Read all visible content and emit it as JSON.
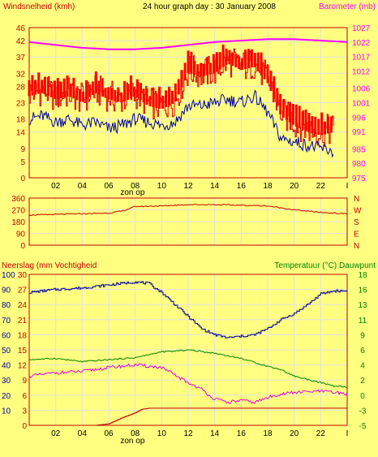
{
  "header": {
    "left_title": "Windsnelheid (kmh)",
    "center_title": "24 hour graph day : 30 January 2008",
    "right_title": "Barometer (mb)"
  },
  "colors": {
    "background": "#ffff80",
    "frame": "#c00000",
    "wind": "#d00000",
    "gust": "#ff0000",
    "avg_wind": "#0000a0",
    "barometer": "#ff00ff",
    "direction": "#c00000",
    "humidity": "#0000a0",
    "temperature": "#008000",
    "dewpoint": "#e000e0",
    "rain": "#c00000",
    "grid": "#e0e0e0"
  },
  "chart_data": [
    {
      "type": "line",
      "title": "24 hour graph day : 30 January 2008",
      "ylabel": "Windsnelheid (kmh)",
      "y2label": "Barometer (mb)",
      "x_ticks": [
        "02",
        "04",
        "06",
        "08",
        "10",
        "12",
        "14",
        "16",
        "18",
        "20",
        "22",
        "I"
      ],
      "sunrise_label": "zon op",
      "ylim": [
        0,
        46
      ],
      "y_ticks": [
        0,
        5,
        9,
        14,
        18,
        23,
        28,
        32,
        37,
        42,
        46
      ],
      "y2lim": [
        975,
        1027
      ],
      "y2_ticks": [
        975,
        980,
        985,
        991,
        996,
        1001,
        1006,
        1012,
        1017,
        1022,
        1027
      ],
      "grid": true,
      "series": [
        {
          "role": "wind",
          "axis": "left",
          "color": "#e00000",
          "x": [
            0,
            1,
            2,
            3,
            4,
            5,
            6,
            7,
            8,
            9,
            10,
            11,
            12,
            13,
            14,
            15,
            16,
            17,
            18,
            19,
            20,
            21,
            22,
            23
          ],
          "values": [
            26,
            27,
            25,
            26,
            24,
            27,
            25,
            24,
            26,
            23,
            22,
            24,
            33,
            32,
            33,
            36,
            34,
            35,
            30,
            20,
            17,
            15,
            14,
            15
          ]
        },
        {
          "role": "avg_wind",
          "axis": "left",
          "color": "#0000a0",
          "x": [
            0,
            1,
            2,
            3,
            4,
            5,
            6,
            7,
            8,
            9,
            10,
            11,
            12,
            13,
            14,
            15,
            16,
            17,
            18,
            19,
            20,
            21,
            22,
            23
          ],
          "values": [
            18,
            19,
            17,
            18,
            16,
            17,
            15,
            16,
            18,
            17,
            16,
            17,
            22,
            22,
            23,
            24,
            23,
            25,
            20,
            12,
            11,
            10,
            9,
            8
          ]
        },
        {
          "role": "barometer",
          "axis": "right",
          "color": "#ff00ff",
          "x": [
            0,
            2,
            4,
            6,
            8,
            10,
            12,
            14,
            16,
            18,
            20,
            22,
            24
          ],
          "values": [
            1022,
            1021,
            1020,
            1019.5,
            1019.5,
            1020,
            1021,
            1022,
            1022.5,
            1023,
            1023,
            1022.5,
            1022
          ]
        }
      ]
    },
    {
      "type": "line",
      "title": "",
      "ylabel": "",
      "x_ticks": [],
      "ylim": [
        0,
        360
      ],
      "y_ticks": [
        0,
        90,
        180,
        270,
        360
      ],
      "right_labels": [
        "N",
        "W",
        "S",
        "E",
        "N"
      ],
      "grid": true,
      "series": [
        {
          "role": "direction",
          "color": "#c00000",
          "x": [
            0,
            2,
            4,
            6,
            7,
            8,
            10,
            12,
            14,
            16,
            18,
            20,
            22,
            24
          ],
          "values": [
            230,
            235,
            240,
            245,
            260,
            295,
            300,
            310,
            310,
            305,
            300,
            270,
            250,
            240
          ]
        }
      ]
    },
    {
      "type": "line",
      "title": "",
      "ylabel": "Neerslag (mm Vochtigheid",
      "y2label": "Temperatuur (°C) Dauwpunt",
      "x_ticks": [
        "02",
        "04",
        "06",
        "08",
        "10",
        "12",
        "14",
        "16",
        "18",
        "20",
        "22",
        "I"
      ],
      "sunrise_label": "zon op",
      "rain_ticks": [
        0,
        3,
        6,
        9,
        12,
        15,
        18,
        21,
        24,
        27,
        30
      ],
      "humidity_ticks": [
        10,
        20,
        30,
        40,
        50,
        60,
        70,
        80,
        90,
        100
      ],
      "ylim_humidity": [
        0,
        100
      ],
      "y2lim": [
        -5,
        18
      ],
      "y2_ticks": [
        -5,
        -3,
        0,
        2,
        4,
        6,
        9,
        11,
        13,
        16,
        18
      ],
      "grid": true,
      "series": [
        {
          "role": "humidity",
          "axis": "humidity",
          "color": "#0000a0",
          "x": [
            0,
            2,
            4,
            6,
            8,
            9,
            10,
            12,
            13,
            14,
            15,
            16,
            17,
            18,
            19,
            20,
            21,
            22,
            23,
            24
          ],
          "values": [
            88,
            90,
            91,
            93,
            95,
            94,
            88,
            72,
            64,
            60,
            58,
            59,
            60,
            64,
            70,
            74,
            80,
            87,
            89,
            89
          ]
        },
        {
          "role": "temperature",
          "axis": "right",
          "color": "#008000",
          "x": [
            0,
            2,
            4,
            6,
            8,
            10,
            11,
            12,
            14,
            16,
            18,
            19,
            20,
            22,
            23,
            24
          ],
          "values": [
            5,
            5.2,
            4.7,
            5.0,
            5.3,
            6.2,
            6.3,
            6.5,
            6.0,
            5.2,
            4.0,
            3.5,
            2.5,
            1.5,
            1.0,
            0.8
          ]
        },
        {
          "role": "dewpoint",
          "axis": "right",
          "color": "#e000e0",
          "x": [
            0,
            2,
            4,
            6,
            8,
            10,
            12,
            13,
            14,
            15,
            16,
            17,
            18,
            19,
            20,
            22,
            23,
            24
          ],
          "values": [
            2.5,
            3.0,
            3.2,
            3.8,
            4.2,
            3.8,
            1.5,
            0.5,
            -1.0,
            -1.5,
            -1.2,
            -1.5,
            -0.8,
            -0.2,
            0.0,
            0.2,
            0.0,
            -0.2
          ]
        },
        {
          "role": "rain",
          "axis": "rain",
          "color": "#c00000",
          "x": [
            0,
            5,
            6,
            7,
            8,
            8.5,
            9,
            24
          ],
          "values": [
            0,
            0,
            0.3,
            1.5,
            2.5,
            3.2,
            3.4,
            3.4
          ]
        }
      ]
    }
  ]
}
